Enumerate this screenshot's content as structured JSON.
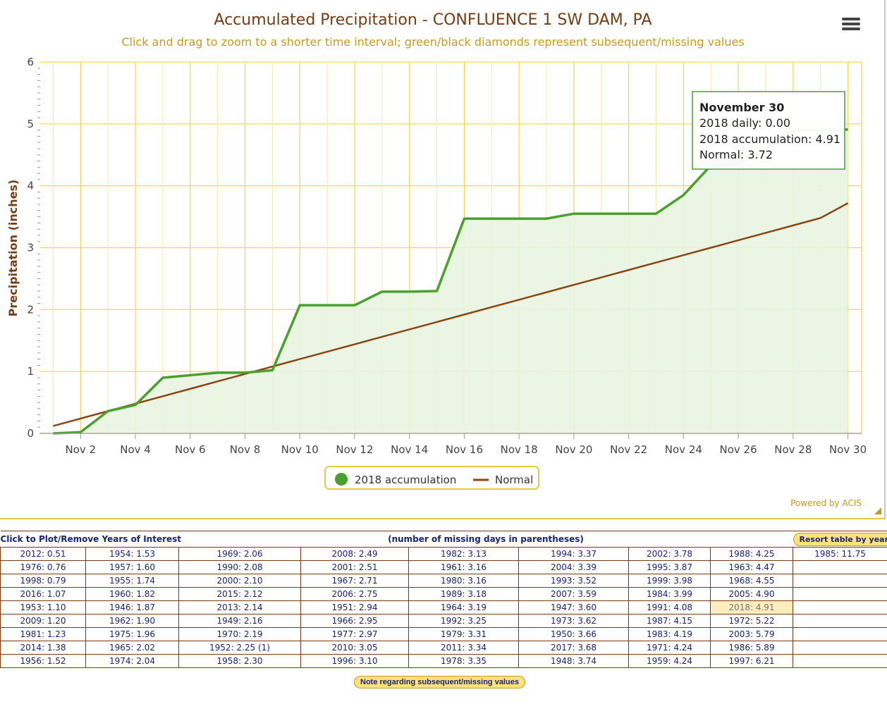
{
  "chart": {
    "title": "Accumulated Precipitation - CONFLUENCE 1 SW DAM, PA",
    "subtitle": "Click and drag to zoom to a shorter time interval; green/black diamonds represent subsequent/missing values",
    "credit": "Powered by ACIS",
    "menu_icon": "hamburger-menu-icon"
  },
  "tooltip": {
    "title": "November 30",
    "line1": "2018 daily: 0.00",
    "line2": "2018 accumulation: 4.91",
    "line3": "Normal: 3.72"
  },
  "chart_data": {
    "type": "area",
    "title": "Accumulated Precipitation - CONFLUENCE 1 SW DAM, PA",
    "ylabel": "Precipitation (inches)",
    "xlabel": "",
    "ylim": [
      0,
      6
    ],
    "yticks": [
      "0",
      "1",
      "2",
      "3",
      "4",
      "5",
      "6"
    ],
    "xtick_labels": [
      "Nov 2",
      "Nov 4",
      "Nov 6",
      "Nov 8",
      "Nov 10",
      "Nov 12",
      "Nov 14",
      "Nov 16",
      "Nov 18",
      "Nov 20",
      "Nov 22",
      "Nov 24",
      "Nov 26",
      "Nov 28",
      "Nov 30"
    ],
    "x": [
      1,
      2,
      3,
      4,
      5,
      6,
      7,
      8,
      9,
      10,
      11,
      12,
      13,
      14,
      15,
      16,
      17,
      18,
      19,
      20,
      21,
      22,
      23,
      24,
      25,
      26,
      27,
      28,
      29,
      30
    ],
    "grid": true,
    "legend_position": "bottom-center",
    "series": [
      {
        "name": "2018 accumulation",
        "color": "#4aa02c",
        "fill": "#e8f4e0",
        "values": [
          0.0,
          0.02,
          0.36,
          0.46,
          0.9,
          0.94,
          0.98,
          0.98,
          1.02,
          2.07,
          2.07,
          2.07,
          2.29,
          2.29,
          2.3,
          3.47,
          3.47,
          3.47,
          3.47,
          3.55,
          3.55,
          3.55,
          3.55,
          3.85,
          4.33,
          4.35,
          4.6,
          4.9,
          4.9,
          4.91
        ]
      },
      {
        "name": "Normal",
        "color": "#8b4513",
        "values": [
          0.12,
          0.24,
          0.36,
          0.48,
          0.6,
          0.72,
          0.84,
          0.96,
          1.08,
          1.2,
          1.32,
          1.44,
          1.56,
          1.68,
          1.8,
          1.92,
          2.04,
          2.16,
          2.28,
          2.4,
          2.52,
          2.64,
          2.76,
          2.88,
          3.0,
          3.12,
          3.24,
          3.36,
          3.48,
          3.72
        ]
      }
    ]
  },
  "table": {
    "left_header": "Click to Plot/Remove Years of Interest",
    "center_header": "(number of missing days in parentheses)",
    "resort_label": "Resort table by year",
    "note_label": "Note regarding subsequent/missing values",
    "highlight": "2018: 4.91",
    "rows": [
      [
        "2012: 0.51",
        "1954: 1.53",
        "1969: 2.06",
        "2008: 2.49",
        "1982: 3.13",
        "1994: 3.37",
        "2002: 3.78",
        "1988: 4.25",
        "1985: 11.75"
      ],
      [
        "1976: 0.76",
        "1957: 1.60",
        "1990: 2.08",
        "2001: 2.51",
        "1961: 3.16",
        "2004: 3.39",
        "1995: 3.87",
        "1963: 4.47",
        ""
      ],
      [
        "1998: 0.79",
        "1955: 1.74",
        "2000: 2.10",
        "1967: 2.71",
        "1980: 3.16",
        "1993: 3.52",
        "1999: 3.98",
        "1968: 4.55",
        ""
      ],
      [
        "2016: 1.07",
        "1960: 1.82",
        "2015: 2.12",
        "2006: 2.75",
        "1989: 3.18",
        "2007: 3.59",
        "1984: 3.99",
        "2005: 4.90",
        ""
      ],
      [
        "1953: 1.10",
        "1946: 1.87",
        "2013: 2.14",
        "1951: 2.94",
        "1964: 3.19",
        "1947: 3.60",
        "1991: 4.08",
        "2018: 4.91",
        ""
      ],
      [
        "2009: 1.20",
        "1962: 1.90",
        "1949: 2.16",
        "1966: 2.95",
        "1992: 3.25",
        "1973: 3.62",
        "1987: 4.15",
        "1972: 5.22",
        ""
      ],
      [
        "1981: 1.23",
        "1975: 1.96",
        "1970: 2.19",
        "1977: 2.97",
        "1979: 3.31",
        "1950: 3.66",
        "1983: 4.19",
        "2003: 5.79",
        ""
      ],
      [
        "2014: 1.38",
        "1965: 2.02",
        "1952: 2.25 (1)",
        "2010: 3.05",
        "2011: 3.34",
        "2017: 3.68",
        "1971: 4.24",
        "1986: 5.89",
        ""
      ],
      [
        "1956: 1.52",
        "1974: 2.04",
        "1958: 2.30",
        "1996: 3.10",
        "1978: 3.35",
        "1948: 3.74",
        "1959: 4.24",
        "1997: 6.21",
        ""
      ]
    ]
  }
}
